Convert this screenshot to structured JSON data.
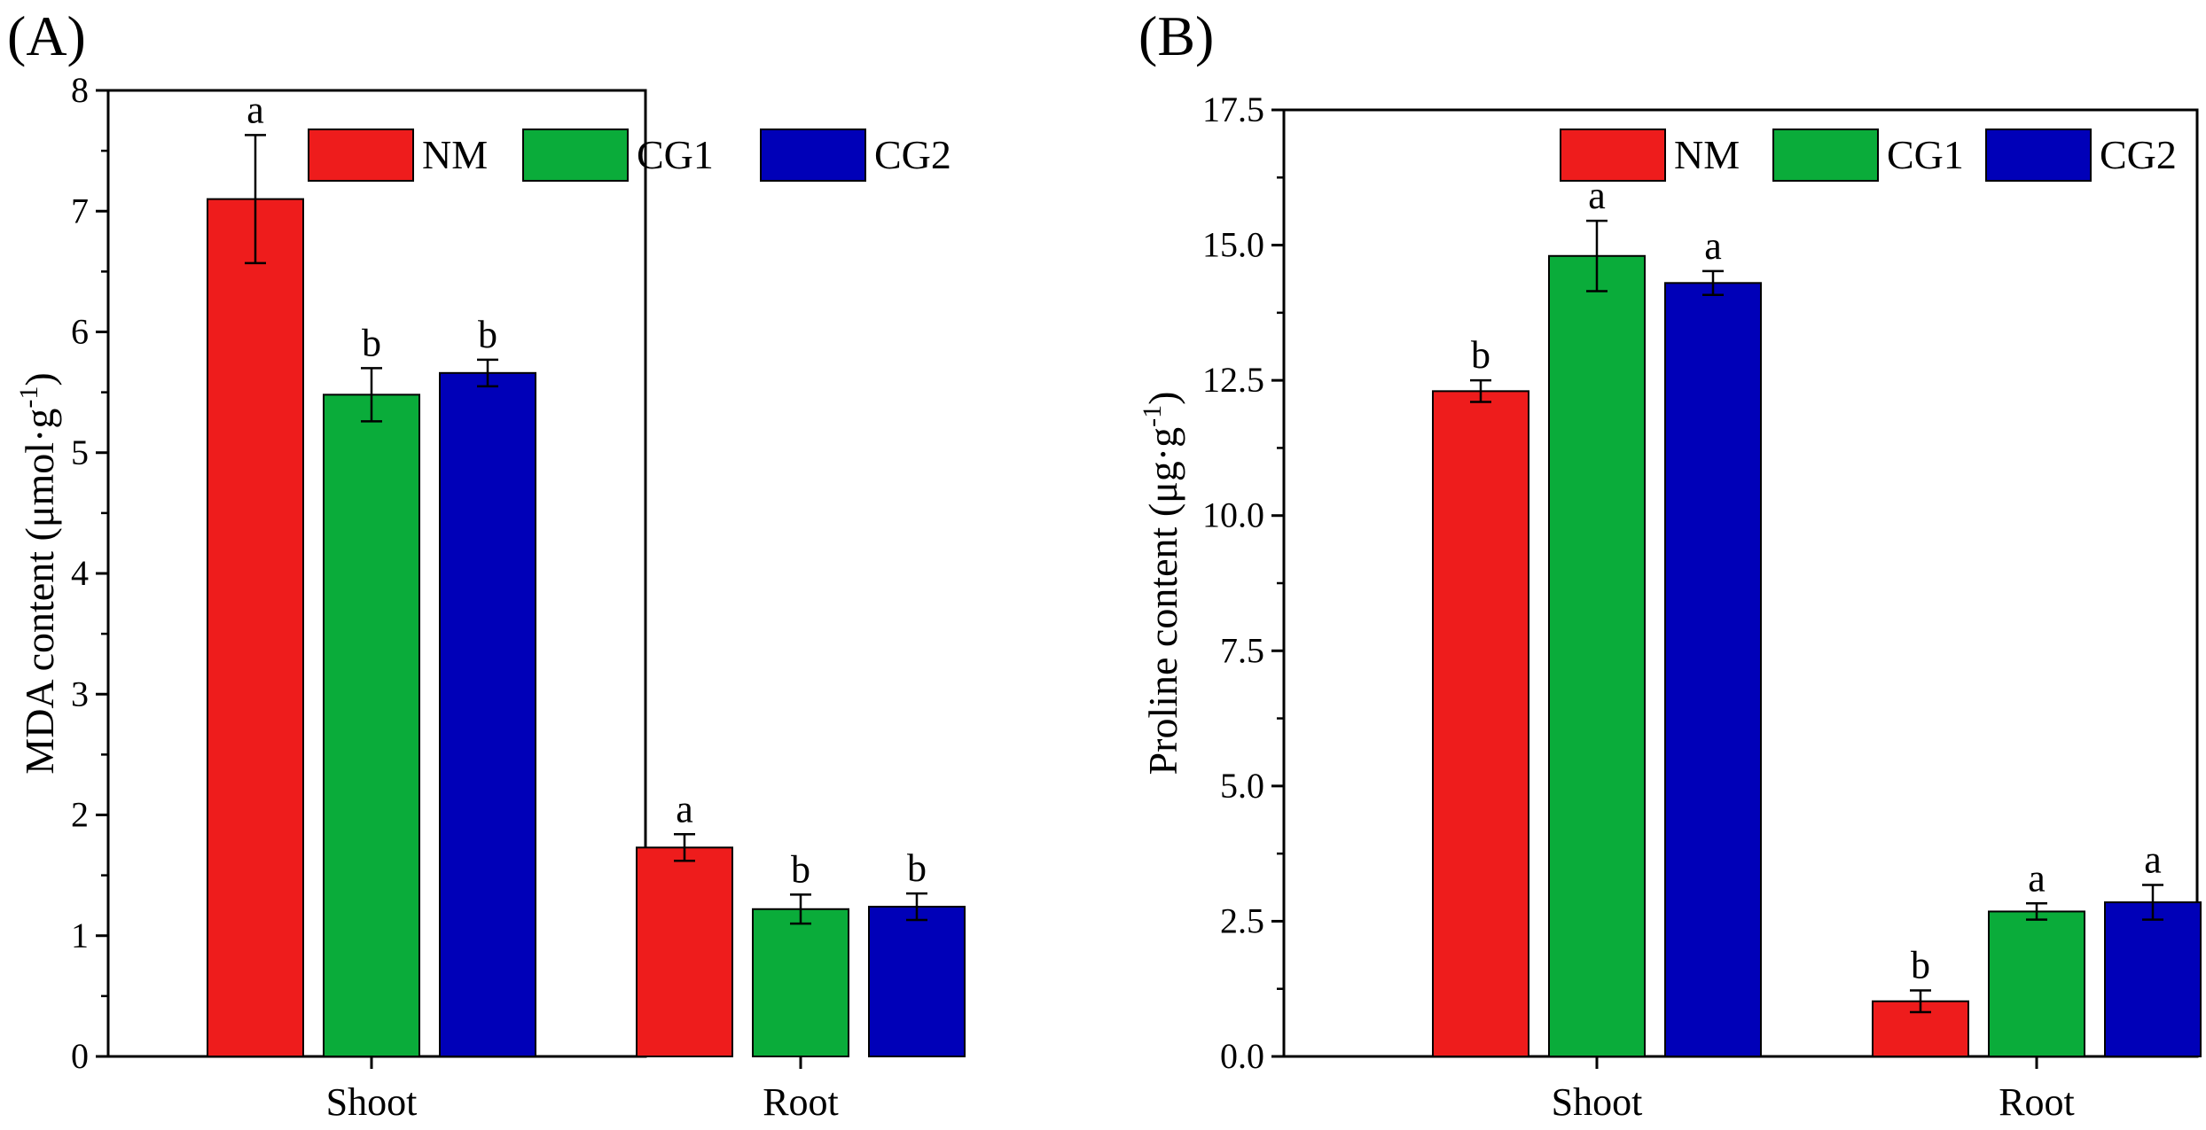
{
  "chart_data": [
    {
      "panel": "(A)",
      "type": "bar",
      "ylabel_main": "MDA content (μmol·g",
      "ylabel_sup": "-1",
      "ylabel_close": ")",
      "categories": [
        "Shoot",
        "Root"
      ],
      "ylim": [
        0,
        8
      ],
      "yticks": [
        0,
        1,
        2,
        3,
        4,
        5,
        6,
        7,
        8
      ],
      "ytick_labels": [
        "0",
        "1",
        "2",
        "3",
        "4",
        "5",
        "6",
        "7",
        "8"
      ],
      "legend_position": "top-right",
      "series": [
        {
          "name": "NM",
          "color": "#ee1c1c",
          "values": [
            7.1,
            1.73
          ],
          "errors": [
            0.53,
            0.11
          ],
          "letters": [
            "a",
            "a"
          ]
        },
        {
          "name": "CG1",
          "color": "#0aac3a",
          "values": [
            5.48,
            1.22
          ],
          "errors": [
            0.22,
            0.12
          ],
          "letters": [
            "b",
            "b"
          ]
        },
        {
          "name": "CG2",
          "color": "#0000b8",
          "values": [
            5.66,
            1.24
          ],
          "errors": [
            0.11,
            0.11
          ],
          "letters": [
            "b",
            "b"
          ]
        }
      ]
    },
    {
      "panel": "(B)",
      "type": "bar",
      "ylabel_main": "Proline content (μg·g",
      "ylabel_sup": "-1",
      "ylabel_close": ")",
      "categories": [
        "Shoot",
        "Root"
      ],
      "ylim": [
        0,
        17.5
      ],
      "yticks": [
        0,
        2.5,
        5,
        7.5,
        10,
        12.5,
        15,
        17.5
      ],
      "ytick_labels": [
        "0.0",
        "2.5",
        "5.0",
        "7.5",
        "10.0",
        "12.5",
        "15.0",
        "17.5"
      ],
      "legend_position": "top-right",
      "series": [
        {
          "name": "NM",
          "color": "#ee1c1c",
          "values": [
            12.3,
            1.02
          ],
          "errors": [
            0.2,
            0.2
          ],
          "letters": [
            "b",
            "b"
          ]
        },
        {
          "name": "CG1",
          "color": "#0aac3a",
          "values": [
            14.8,
            2.68
          ],
          "errors": [
            0.65,
            0.15
          ],
          "letters": [
            "a",
            "a"
          ]
        },
        {
          "name": "CG2",
          "color": "#0000b8",
          "values": [
            14.3,
            2.85
          ],
          "errors": [
            0.22,
            0.32
          ],
          "letters": [
            "a",
            "a"
          ]
        }
      ]
    }
  ]
}
